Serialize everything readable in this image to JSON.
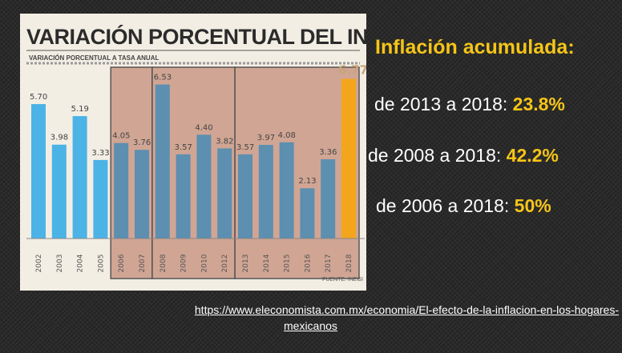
{
  "chart_data": {
    "type": "bar",
    "title": "VARIACIÓN PORCENTUAL DEL INPC",
    "subtitle": "VARIACIÓN PORCENTUAL A TASA ANUAL",
    "source": "FUENTE: INEGI",
    "categories": [
      "2002",
      "2003",
      "2004",
      "2005",
      "2006",
      "2007",
      "2008",
      "2009",
      "2010",
      "2012",
      "2013",
      "2014",
      "2015",
      "2016",
      "2017",
      "2018"
    ],
    "values": [
      5.7,
      3.98,
      5.19,
      3.33,
      4.05,
      3.76,
      6.53,
      3.57,
      4.4,
      3.82,
      3.57,
      3.97,
      4.08,
      2.13,
      3.36,
      6.77
    ],
    "value_labels": [
      "5.70",
      "3.98",
      "5.19",
      "3.33",
      "4.05",
      "3.76",
      "6.53",
      "3.57",
      "4.40",
      "3.82",
      "3.57",
      "3.97",
      "4.08",
      "2.13",
      "3.36",
      "6.77"
    ],
    "highlight_category": "2018",
    "shaded_ranges": [
      [
        "2006",
        "2007"
      ],
      [
        "2008",
        "2012"
      ],
      [
        "2013",
        "2018"
      ]
    ],
    "ylim": [
      0,
      7.5
    ],
    "grid": false,
    "colors": {
      "bar": "#4cb3e6",
      "shaded_bar": "#5c8fb0",
      "highlight_bar": "#f3a51c",
      "shade": "#c48c79"
    }
  },
  "side_panel": {
    "title": "Inflación acumulada:",
    "stats": [
      {
        "text": "de 2013 a 2018: ",
        "value": "23.8%"
      },
      {
        "text": "de 2008 a 2018: ",
        "value": "42.2%"
      },
      {
        "text": "de 2006 a 2018: ",
        "value": "50%"
      }
    ]
  },
  "source_link": {
    "line1": "https://www.eleconomista.com.mx/economia/El-efecto-de-la-inflacion-en-los-hogares-",
    "line2": "mexicanos"
  }
}
